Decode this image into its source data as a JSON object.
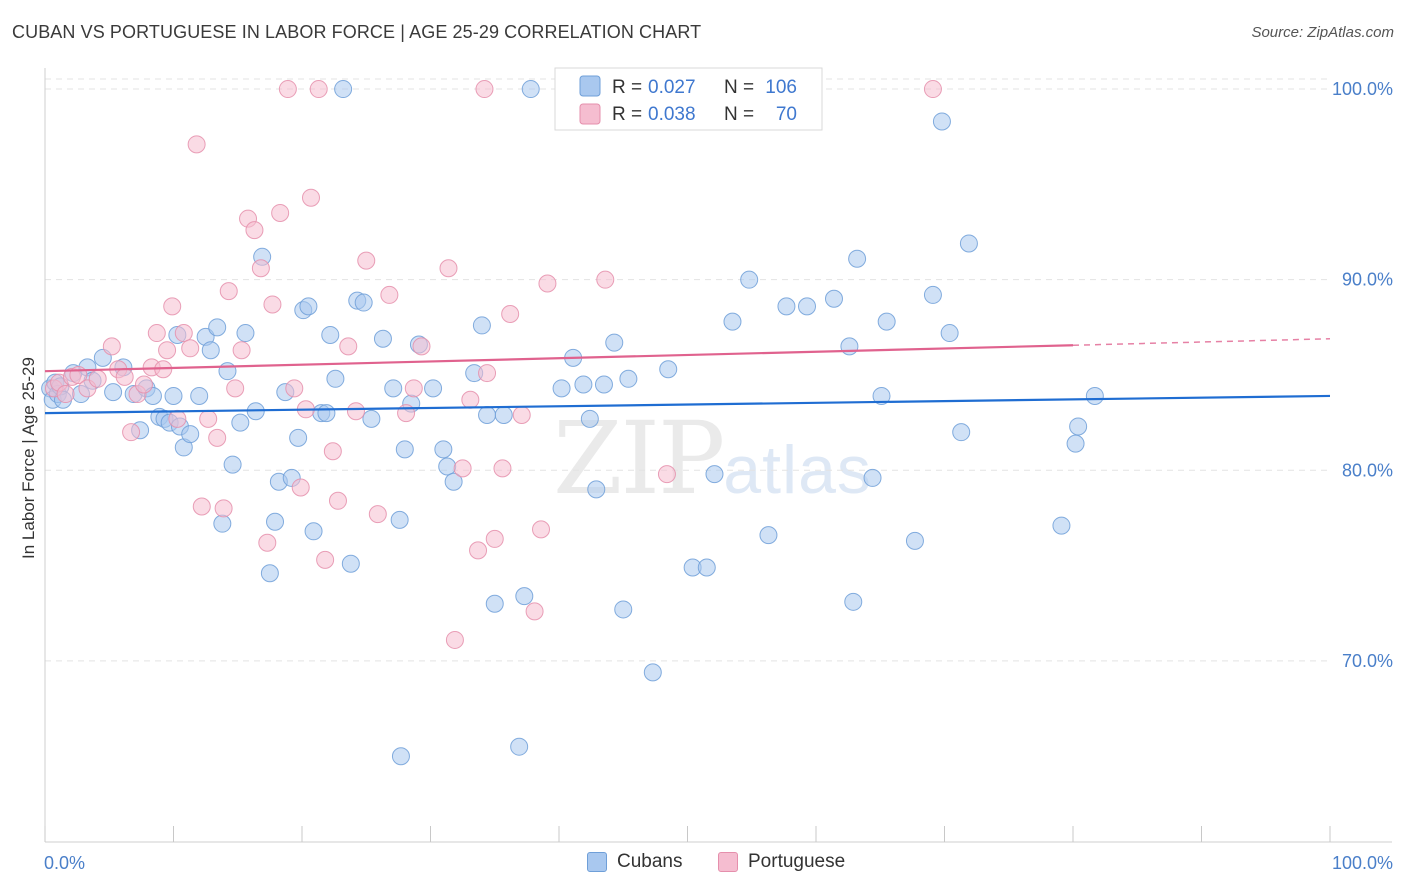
{
  "title": "CUBAN VS PORTUGUESE IN LABOR FORCE | AGE 25-29 CORRELATION CHART",
  "source": "Source: ZipAtlas.com",
  "watermark": {
    "zip": "ZIP",
    "atlas": "atlas"
  },
  "colors": {
    "cubans_fill": "#a9c8ef",
    "cubans_stroke": "#6f9fd8",
    "cubans_line": "#1f6dd2",
    "portuguese_fill": "#f5bdd0",
    "portuguese_stroke": "#e58fac",
    "portuguese_line": "#e0628e",
    "axis_value": "#4a7fc9",
    "grid": "#e3e3e3"
  },
  "legend": {
    "rows": [
      {
        "r_label": "R =",
        "r_value": "0.027",
        "n_label": "N =",
        "n_value": "106"
      },
      {
        "r_label": "R =",
        "r_value": "0.038",
        "n_label": "N =",
        "n_value": "70"
      }
    ]
  },
  "bottom_legend": {
    "cubans": "Cubans",
    "portuguese": "Portuguese"
  },
  "chart_data": {
    "type": "scatter",
    "title": "CUBAN VS PORTUGUESE IN LABOR FORCE | AGE 25-29 CORRELATION CHART",
    "xlabel": "",
    "ylabel": "In Labor Force | Age 25-29",
    "xlim": [
      0,
      100
    ],
    "ylim": [
      60.5,
      101.0
    ],
    "x_tick_labels": [
      "0.0%",
      "100.0%"
    ],
    "y_ticks": [
      70,
      80,
      90,
      100
    ],
    "y_tick_labels": [
      "70.0%",
      "80.0%",
      "90.0%",
      "100.0%"
    ],
    "grid": true,
    "legend_position": "top-center",
    "series": [
      {
        "name": "Cubans",
        "r": 0.027,
        "n": 106,
        "trend": {
          "x": [
            0,
            100
          ],
          "y": [
            83.0,
            83.9
          ],
          "dashed_from": null
        },
        "points": [
          [
            0.4,
            84.3
          ],
          [
            0.6,
            83.7
          ],
          [
            0.8,
            84.6
          ],
          [
            1.0,
            84.0
          ],
          [
            1.2,
            84.4
          ],
          [
            1.4,
            83.7
          ],
          [
            2.2,
            85.1
          ],
          [
            2.8,
            84.0
          ],
          [
            3.3,
            85.4
          ],
          [
            3.7,
            84.7
          ],
          [
            4.5,
            85.9
          ],
          [
            5.3,
            84.1
          ],
          [
            6.1,
            85.4
          ],
          [
            6.9,
            84.0
          ],
          [
            7.4,
            82.1
          ],
          [
            7.9,
            84.3
          ],
          [
            8.4,
            83.9
          ],
          [
            8.9,
            82.8
          ],
          [
            9.3,
            82.7
          ],
          [
            9.7,
            82.5
          ],
          [
            10.0,
            83.9
          ],
          [
            10.3,
            87.1
          ],
          [
            10.5,
            82.3
          ],
          [
            10.8,
            81.2
          ],
          [
            11.3,
            81.9
          ],
          [
            12.0,
            83.9
          ],
          [
            12.5,
            87.0
          ],
          [
            12.9,
            86.3
          ],
          [
            13.4,
            87.5
          ],
          [
            13.8,
            77.2
          ],
          [
            14.2,
            85.2
          ],
          [
            14.6,
            80.3
          ],
          [
            15.2,
            82.5
          ],
          [
            15.6,
            87.2
          ],
          [
            16.4,
            83.1
          ],
          [
            16.9,
            91.2
          ],
          [
            17.5,
            74.6
          ],
          [
            17.9,
            77.3
          ],
          [
            18.2,
            79.4
          ],
          [
            18.7,
            84.1
          ],
          [
            19.2,
            79.6
          ],
          [
            19.7,
            81.7
          ],
          [
            20.1,
            88.4
          ],
          [
            20.5,
            88.6
          ],
          [
            20.9,
            76.8
          ],
          [
            21.5,
            83.0
          ],
          [
            21.9,
            83.0
          ],
          [
            22.2,
            87.1
          ],
          [
            22.6,
            84.8
          ],
          [
            23.8,
            75.1
          ],
          [
            24.3,
            88.9
          ],
          [
            24.8,
            88.8
          ],
          [
            25.4,
            82.7
          ],
          [
            26.3,
            86.9
          ],
          [
            27.1,
            84.3
          ],
          [
            27.6,
            77.4
          ],
          [
            28.0,
            81.1
          ],
          [
            28.5,
            83.5
          ],
          [
            29.1,
            86.6
          ],
          [
            30.2,
            84.3
          ],
          [
            31.0,
            81.1
          ],
          [
            31.3,
            80.2
          ],
          [
            31.8,
            79.4
          ],
          [
            33.4,
            85.1
          ],
          [
            34.0,
            87.6
          ],
          [
            34.4,
            82.9
          ],
          [
            35.0,
            73.0
          ],
          [
            35.7,
            82.9
          ],
          [
            36.9,
            65.5
          ],
          [
            27.7,
            65.0
          ],
          [
            37.3,
            73.4
          ],
          [
            40.2,
            84.3
          ],
          [
            41.1,
            85.9
          ],
          [
            41.9,
            84.5
          ],
          [
            42.4,
            82.7
          ],
          [
            42.9,
            79.0
          ],
          [
            43.5,
            84.5
          ],
          [
            44.3,
            86.7
          ],
          [
            45.0,
            72.7
          ],
          [
            45.4,
            84.8
          ],
          [
            47.3,
            69.4
          ],
          [
            48.5,
            85.3
          ],
          [
            50.4,
            74.9
          ],
          [
            51.5,
            74.9
          ],
          [
            52.1,
            79.8
          ],
          [
            53.5,
            87.8
          ],
          [
            54.8,
            90.0
          ],
          [
            56.3,
            76.6
          ],
          [
            57.7,
            88.6
          ],
          [
            59.3,
            88.6
          ],
          [
            61.4,
            89.0
          ],
          [
            62.6,
            86.5
          ],
          [
            62.9,
            73.1
          ],
          [
            63.2,
            91.1
          ],
          [
            64.4,
            79.6
          ],
          [
            65.1,
            83.9
          ],
          [
            65.5,
            87.8
          ],
          [
            67.7,
            76.3
          ],
          [
            69.1,
            89.2
          ],
          [
            69.8,
            98.3
          ],
          [
            70.4,
            87.2
          ],
          [
            71.3,
            82.0
          ],
          [
            71.9,
            91.9
          ],
          [
            80.4,
            82.3
          ],
          [
            79.1,
            77.1
          ],
          [
            80.2,
            81.4
          ],
          [
            81.7,
            83.9
          ],
          [
            23.2,
            100.0
          ],
          [
            37.8,
            100.0
          ]
        ]
      },
      {
        "name": "Portuguese",
        "r": 0.038,
        "n": 70,
        "trend": {
          "x": [
            0,
            100
          ],
          "y": [
            85.2,
            86.9
          ],
          "dashed_from": 80
        },
        "points": [
          [
            0.7,
            84.3
          ],
          [
            1.1,
            84.6
          ],
          [
            1.6,
            84.0
          ],
          [
            2.1,
            84.9
          ],
          [
            2.6,
            85.0
          ],
          [
            3.3,
            84.3
          ],
          [
            4.1,
            84.8
          ],
          [
            5.2,
            86.5
          ],
          [
            5.7,
            85.3
          ],
          [
            6.2,
            84.9
          ],
          [
            6.7,
            82.0
          ],
          [
            7.2,
            84.0
          ],
          [
            7.7,
            84.5
          ],
          [
            8.3,
            85.4
          ],
          [
            8.7,
            87.2
          ],
          [
            9.2,
            85.3
          ],
          [
            9.5,
            86.3
          ],
          [
            9.9,
            88.6
          ],
          [
            10.3,
            82.7
          ],
          [
            10.8,
            87.2
          ],
          [
            11.3,
            86.4
          ],
          [
            11.8,
            97.1
          ],
          [
            12.2,
            78.1
          ],
          [
            12.7,
            82.7
          ],
          [
            13.4,
            81.7
          ],
          [
            13.9,
            78.0
          ],
          [
            14.3,
            89.4
          ],
          [
            14.8,
            84.3
          ],
          [
            15.3,
            86.3
          ],
          [
            15.8,
            93.2
          ],
          [
            16.3,
            92.6
          ],
          [
            16.8,
            90.6
          ],
          [
            17.3,
            76.2
          ],
          [
            17.7,
            88.7
          ],
          [
            18.3,
            93.5
          ],
          [
            18.9,
            100.0
          ],
          [
            19.4,
            84.3
          ],
          [
            19.9,
            79.1
          ],
          [
            20.3,
            83.2
          ],
          [
            20.7,
            94.3
          ],
          [
            21.3,
            100.0
          ],
          [
            21.8,
            75.3
          ],
          [
            22.4,
            81.0
          ],
          [
            22.8,
            78.4
          ],
          [
            23.6,
            86.5
          ],
          [
            24.2,
            83.1
          ],
          [
            25.0,
            91.0
          ],
          [
            25.9,
            77.7
          ],
          [
            26.8,
            89.2
          ],
          [
            28.1,
            83.0
          ],
          [
            28.7,
            84.3
          ],
          [
            29.3,
            86.5
          ],
          [
            31.4,
            90.6
          ],
          [
            31.9,
            71.1
          ],
          [
            32.5,
            80.1
          ],
          [
            33.1,
            83.7
          ],
          [
            33.7,
            75.8
          ],
          [
            34.4,
            85.1
          ],
          [
            35.0,
            76.4
          ],
          [
            35.6,
            80.1
          ],
          [
            36.2,
            88.2
          ],
          [
            37.1,
            82.9
          ],
          [
            38.1,
            72.6
          ],
          [
            38.6,
            76.9
          ],
          [
            39.1,
            89.8
          ],
          [
            43.6,
            90.0
          ],
          [
            48.4,
            79.8
          ],
          [
            57.5,
            100.0
          ],
          [
            69.1,
            100.0
          ],
          [
            34.2,
            100.0
          ]
        ]
      }
    ]
  }
}
